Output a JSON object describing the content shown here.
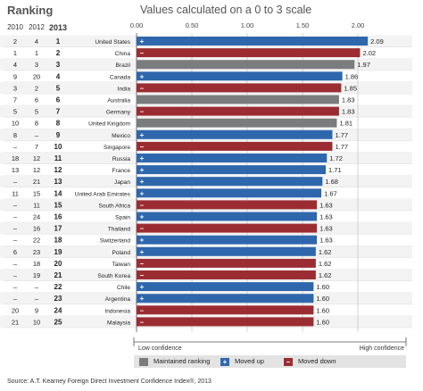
{
  "header": {
    "ranking_title": "Ranking",
    "chart_title": "Values calculated on a 0 to 3 scale",
    "years": [
      "2010",
      "2012",
      "2013"
    ]
  },
  "chart_data": {
    "type": "bar",
    "orientation": "horizontal",
    "title": "Values calculated on a 0 to 3 scale",
    "xlim": [
      0,
      2.0
    ],
    "xticks": [
      "0.00",
      "0.50",
      "1.00",
      "1.50",
      "2.00"
    ],
    "grid": true,
    "colors": {
      "same": "#7b7c7e",
      "up": "#2f67ad",
      "down": "#9b2d32"
    },
    "rows": [
      {
        "r2010": "2",
        "r2012": "4",
        "r2013": "1",
        "country": "United States",
        "value": 2.09,
        "status": "up",
        "label": "2.09"
      },
      {
        "r2010": "1",
        "r2012": "1",
        "r2013": "2",
        "country": "China",
        "value": 2.02,
        "status": "down",
        "label": "2.02"
      },
      {
        "r2010": "4",
        "r2012": "3",
        "r2013": "3",
        "country": "Brazil",
        "value": 1.97,
        "status": "same",
        "label": "1.97"
      },
      {
        "r2010": "9",
        "r2012": "20",
        "r2013": "4",
        "country": "Canada",
        "value": 1.86,
        "status": "up",
        "label": "1.86"
      },
      {
        "r2010": "3",
        "r2012": "2",
        "r2013": "5",
        "country": "India",
        "value": 1.85,
        "status": "down",
        "label": "1.85"
      },
      {
        "r2010": "7",
        "r2012": "6",
        "r2013": "6",
        "country": "Australia",
        "value": 1.83,
        "status": "same",
        "label": "1.83"
      },
      {
        "r2010": "5",
        "r2012": "5",
        "r2013": "7",
        "country": "Germany",
        "value": 1.83,
        "status": "down",
        "label": "1.83"
      },
      {
        "r2010": "10",
        "r2012": "8",
        "r2013": "8",
        "country": "United Kingdom",
        "value": 1.81,
        "status": "same",
        "label": "1.81"
      },
      {
        "r2010": "8",
        "r2012": "–",
        "r2013": "9",
        "country": "Mexico",
        "value": 1.77,
        "status": "up",
        "label": "1.77"
      },
      {
        "r2010": "–",
        "r2012": "7",
        "r2013": "10",
        "country": "Singapore",
        "value": 1.77,
        "status": "down",
        "label": "1.77"
      },
      {
        "r2010": "18",
        "r2012": "12",
        "r2013": "11",
        "country": "Russia",
        "value": 1.72,
        "status": "up",
        "label": "1.72"
      },
      {
        "r2010": "13",
        "r2012": "12",
        "r2013": "12",
        "country": "France",
        "value": 1.71,
        "status": "up",
        "label": "1.71"
      },
      {
        "r2010": "–",
        "r2012": "21",
        "r2013": "13",
        "country": "Japan",
        "value": 1.68,
        "status": "up",
        "label": "1.68"
      },
      {
        "r2010": "11",
        "r2012": "15",
        "r2013": "14",
        "country": "United Arab Emirates",
        "value": 1.67,
        "status": "up",
        "label": "1.67"
      },
      {
        "r2010": "–",
        "r2012": "11",
        "r2013": "15",
        "country": "South Africa",
        "value": 1.63,
        "status": "down",
        "label": "1.63"
      },
      {
        "r2010": "–",
        "r2012": "24",
        "r2013": "16",
        "country": "Spain",
        "value": 1.63,
        "status": "up",
        "label": "1.63"
      },
      {
        "r2010": "–",
        "r2012": "16",
        "r2013": "17",
        "country": "Thailand",
        "value": 1.63,
        "status": "down",
        "label": "1.63"
      },
      {
        "r2010": "–",
        "r2012": "22",
        "r2013": "18",
        "country": "Switzerland",
        "value": 1.63,
        "status": "up",
        "label": "1.63"
      },
      {
        "r2010": "6",
        "r2012": "23",
        "r2013": "19",
        "country": "Poland",
        "value": 1.62,
        "status": "up",
        "label": "1.62"
      },
      {
        "r2010": "–",
        "r2012": "18",
        "r2013": "20",
        "country": "Taiwan",
        "value": 1.62,
        "status": "down",
        "label": "1.62"
      },
      {
        "r2010": "–",
        "r2012": "19",
        "r2013": "21",
        "country": "South Korea",
        "value": 1.62,
        "status": "down",
        "label": "1.62"
      },
      {
        "r2010": "–",
        "r2012": "–",
        "r2013": "22",
        "country": "Chile",
        "value": 1.6,
        "status": "up",
        "label": "1.60"
      },
      {
        "r2010": "–",
        "r2012": "–",
        "r2013": "23",
        "country": "Argentina",
        "value": 1.6,
        "status": "up",
        "label": "1.60"
      },
      {
        "r2010": "20",
        "r2012": "9",
        "r2013": "24",
        "country": "Indonesia",
        "value": 1.6,
        "status": "down",
        "label": "1.60"
      },
      {
        "r2010": "21",
        "r2012": "10",
        "r2013": "25",
        "country": "Malaysia",
        "value": 1.6,
        "status": "down",
        "label": "1.60"
      }
    ]
  },
  "axis": {
    "low_label": "Low confidence",
    "high_label": "High confidence"
  },
  "legend": {
    "same_label": "Maintained ranking",
    "up_label": "Moved up",
    "down_label": "Moved down",
    "up_symbol": "+",
    "down_symbol": "–"
  },
  "source": "Source: A.T. Kearney Foreign Direct Investment Confidence Index®, 2013"
}
